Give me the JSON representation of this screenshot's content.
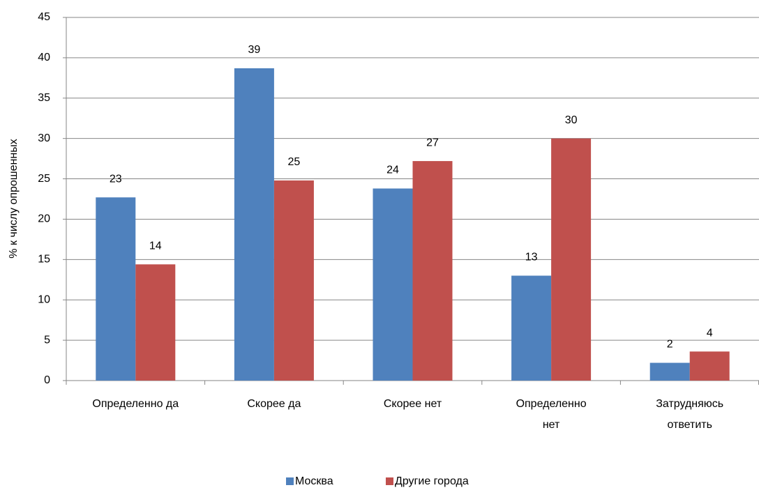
{
  "chart_data": {
    "type": "bar",
    "y_label": "% к числу опрошенных",
    "categories": [
      "Определенно да",
      "Скорее да",
      "Скорее нет",
      "Определенно нет",
      "Затрудняюсь ответить"
    ],
    "series": [
      {
        "name": "Москва",
        "color": "#4f81bd",
        "values": [
          22.7,
          38.7,
          23.8,
          13.0,
          2.2
        ],
        "value_labels": [
          "23",
          "39",
          "24",
          "13",
          "2"
        ]
      },
      {
        "name": "Другие города",
        "color": "#c0504d",
        "values": [
          14.4,
          24.8,
          27.2,
          30.0,
          3.6
        ],
        "value_labels": [
          "14",
          "25",
          "27",
          "30",
          "4"
        ]
      }
    ],
    "ylim": [
      0,
      45
    ],
    "yticks": [
      0,
      5,
      10,
      15,
      20,
      25,
      30,
      35,
      40,
      45
    ],
    "grid": true,
    "legend": "bottom"
  }
}
